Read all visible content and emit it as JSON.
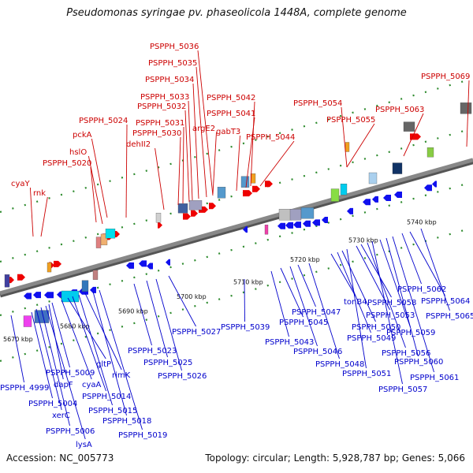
{
  "title": "Pseudomonas syringae pv. phaseolicola 1448A, complete genome",
  "accession": "Accession: NC_005773",
  "summary": "Topology: circular; Length: 5,928,787 bp; Genes: 5,066",
  "colors": {
    "top_label": "#cc0000",
    "bottom_label": "#0000cc",
    "backbone": "#888888",
    "tick": "#2e8b2e"
  },
  "kbp_ticks": [
    "5670 kbp",
    "5680 kbp",
    "5690 kbp",
    "5700 kbp",
    "5710 kbp",
    "5720 kbp",
    "5730 kbp",
    "5740 kbp"
  ],
  "top_labels": [
    "cyaY",
    "rnk",
    "PSPPH_5020",
    "hslO",
    "pckA",
    "PSPPH_5024",
    "dehII2",
    "PSPPH_5030",
    "PSPPH_5031",
    "PSPPH_5032",
    "PSPPH_5033",
    "PSPPH_5034",
    "PSPPH_5035",
    "PSPPH_5036",
    "argE2",
    "gabT3",
    "PSPPH_5041",
    "PSPPH_5042",
    "PSPPH_5044",
    "PSPPH_5054",
    "PSPPH_5055",
    "PSPPH_5063",
    "PSPPH_5069"
  ],
  "bottom_labels": [
    "PSPPH_4999",
    "PSPPH_5004",
    "xerC",
    "PSPPH_5006",
    "lysA",
    "dapF",
    "PSPPH_5009",
    "cyaA",
    "gltP",
    "PSPPH_5014",
    "PSPPH_5015",
    "rimK",
    "PSPPH_5018",
    "PSPPH_5019",
    "PSPPH_5023",
    "PSPPH_5025",
    "PSPPH_5026",
    "PSPPH_5027",
    "PSPPH_5039",
    "PSPPH_5043",
    "PSPPH_5045",
    "PSPPH_5046",
    "PSPPH_5047",
    "PSPPH_5048",
    "tonB4",
    "PSPPH_5049",
    "PSPPH_5050",
    "PSPPH_5051",
    "PSPPH_5053",
    "PSPPH_5058",
    "PSPPH_5056",
    "PSPPH_5057",
    "PSPPH_5059",
    "PSPPH_5060",
    "PSPPH_5061",
    "PSPPH_5062",
    "PSPPH_5064",
    "PSPPH_5065"
  ]
}
